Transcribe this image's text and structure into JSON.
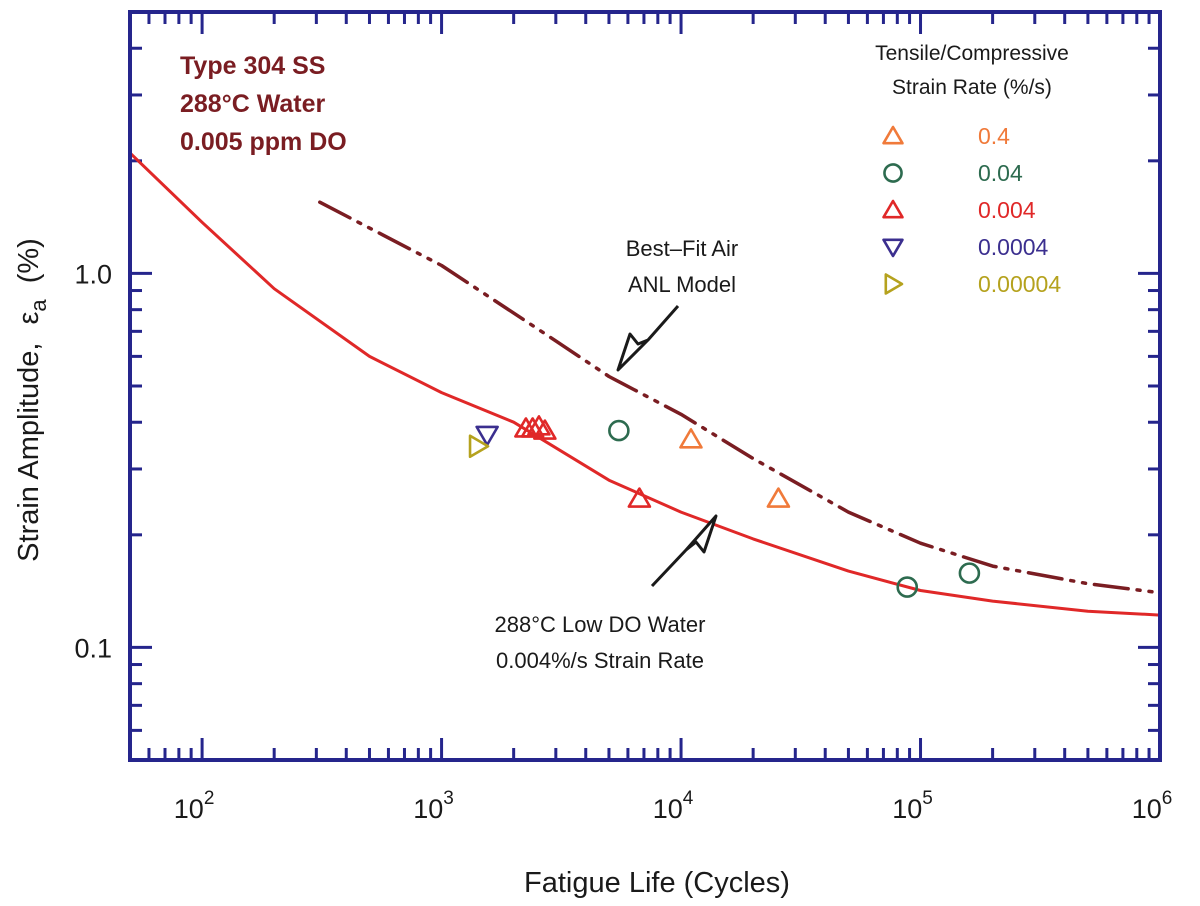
{
  "colors": {
    "frame": "#25258c",
    "water_curve": "#e02828",
    "air_curve": "#7a1d22",
    "annotation_text": "#7a1d22"
  },
  "chart_data": {
    "type": "scatter",
    "x_scale": "log",
    "y_scale": "log",
    "xlim": [
      50,
      1000000
    ],
    "ylim": [
      0.05,
      5
    ],
    "xlabel": "Fatigue Life (Cycles)",
    "ylabel_main": "Strain Amplitude,",
    "ylabel_symbol": "ε",
    "ylabel_sub": "a",
    "ylabel_unit": "(%)",
    "x_ticks": [
      {
        "base": "10",
        "exp": "2",
        "value": 100
      },
      {
        "base": "10",
        "exp": "3",
        "value": 1000
      },
      {
        "base": "10",
        "exp": "4",
        "value": 10000
      },
      {
        "base": "10",
        "exp": "5",
        "value": 100000
      },
      {
        "base": "10",
        "exp": "6",
        "value": 1000000
      }
    ],
    "y_ticks": [
      {
        "label": "1.0",
        "value": 1.0
      },
      {
        "label": "0.1",
        "value": 0.1
      }
    ],
    "conditions": [
      "Type 304 SS",
      "288°C Water",
      "0.005 ppm  DO"
    ],
    "legend_title": [
      "Tensile/Compressive",
      "Strain Rate (%/s)"
    ],
    "series": [
      {
        "name": "0.4",
        "marker": "triangle-up",
        "color": "#f07a3a",
        "points": [
          [
            11000,
            0.36
          ],
          [
            25500,
            0.25
          ]
        ]
      },
      {
        "name": "0.04",
        "marker": "circle",
        "color": "#2d6b4f",
        "points": [
          [
            5500,
            0.38
          ],
          [
            88000,
            0.145
          ],
          [
            160000,
            0.158
          ]
        ]
      },
      {
        "name": "0.004",
        "marker": "triangle-up",
        "color": "#e02828",
        "points": [
          [
            2250,
            0.385
          ],
          [
            2400,
            0.385
          ],
          [
            2550,
            0.39
          ],
          [
            2700,
            0.38
          ],
          [
            6700,
            0.25
          ]
        ]
      },
      {
        "name": "0.0004",
        "marker": "triangle-down",
        "color": "#3b2f8f",
        "points": [
          [
            1550,
            0.37
          ]
        ]
      },
      {
        "name": "0.00004",
        "marker": "triangle-right",
        "color": "#b5a21e",
        "points": [
          [
            1420,
            0.345
          ]
        ]
      }
    ],
    "curves": [
      {
        "name": "288°C Low DO Water 0.004%/s Strain Rate",
        "style": "solid",
        "points": [
          [
            50,
            2.1
          ],
          [
            100,
            1.37
          ],
          [
            200,
            0.91
          ],
          [
            500,
            0.6
          ],
          [
            1000,
            0.48
          ],
          [
            2000,
            0.4
          ],
          [
            5000,
            0.28
          ],
          [
            10000,
            0.23
          ],
          [
            20000,
            0.195
          ],
          [
            50000,
            0.16
          ],
          [
            100000,
            0.142
          ],
          [
            200000,
            0.133
          ],
          [
            500000,
            0.125
          ],
          [
            1000000,
            0.122
          ]
        ]
      },
      {
        "name": "Best–Fit Air ANL Model",
        "style": "dash-dot-dot",
        "points": [
          [
            310,
            1.55
          ],
          [
            1000,
            1.05
          ],
          [
            3000,
            0.66
          ],
          [
            5000,
            0.53
          ],
          [
            10000,
            0.42
          ],
          [
            20000,
            0.32
          ],
          [
            50000,
            0.23
          ],
          [
            100000,
            0.19
          ],
          [
            200000,
            0.165
          ],
          [
            500000,
            0.148
          ],
          [
            1000000,
            0.14
          ]
        ]
      }
    ],
    "annotations": {
      "air": [
        "Best–Fit Air",
        "ANL Model"
      ],
      "water": [
        "288°C Low DO Water",
        "0.004%/s Strain Rate"
      ]
    }
  }
}
